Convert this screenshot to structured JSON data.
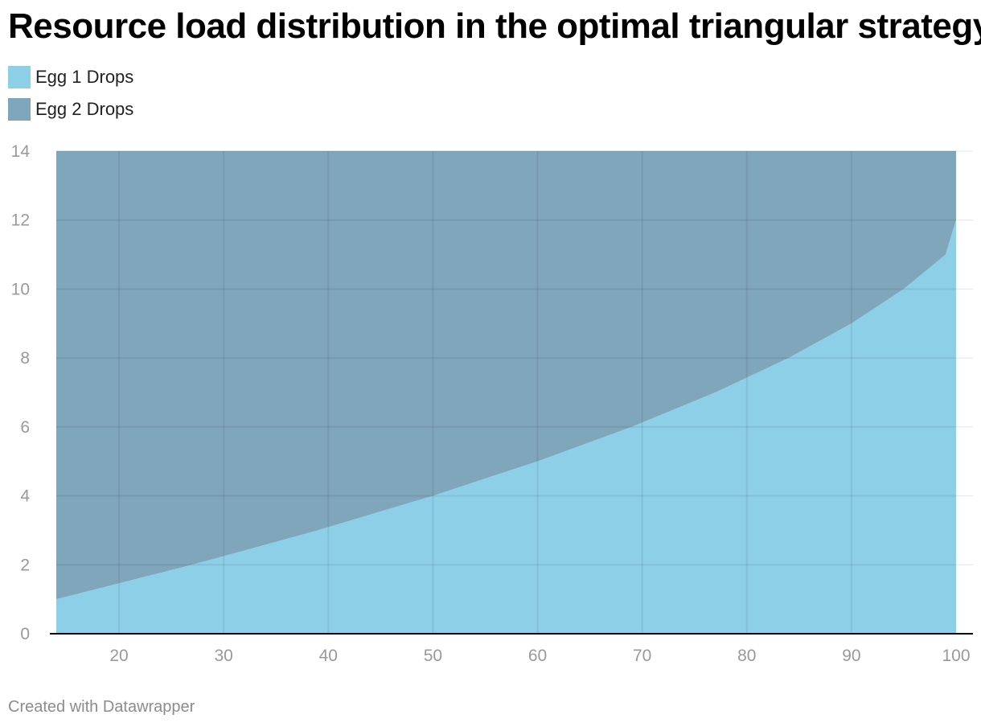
{
  "title": "Resource load distribution in the optimal triangular strategy",
  "footer": "Created with Datawrapper",
  "colors": {
    "egg1": "#8ccfe6",
    "egg2": "#7fa6ba",
    "grid": "#e5e5e5",
    "axis": "#000000"
  },
  "chart_data": {
    "type": "area",
    "stacked": true,
    "title": "Resource load distribution in the optimal triangular strategy",
    "xlabel": "",
    "ylabel": "",
    "xlim": [
      14,
      100
    ],
    "ylim": [
      0,
      14
    ],
    "x_ticks": [
      20,
      30,
      40,
      50,
      60,
      70,
      80,
      90,
      100
    ],
    "y_ticks": [
      0,
      2,
      4,
      6,
      8,
      10,
      12,
      14
    ],
    "grid": true,
    "legend_position": "top-left",
    "x": [
      14,
      27,
      39,
      50,
      60,
      69,
      77,
      84,
      90,
      95,
      99,
      100
    ],
    "series": [
      {
        "name": "Egg 1 Drops",
        "color": "#8ccfe6",
        "values": [
          1,
          2,
          3,
          4,
          5,
          6,
          7,
          8,
          9,
          10,
          11,
          12
        ]
      },
      {
        "name": "Egg 2 Drops",
        "color": "#7fa6ba",
        "values": [
          13,
          12,
          11,
          10,
          9,
          8,
          7,
          6,
          5,
          4,
          3,
          2
        ]
      }
    ]
  }
}
